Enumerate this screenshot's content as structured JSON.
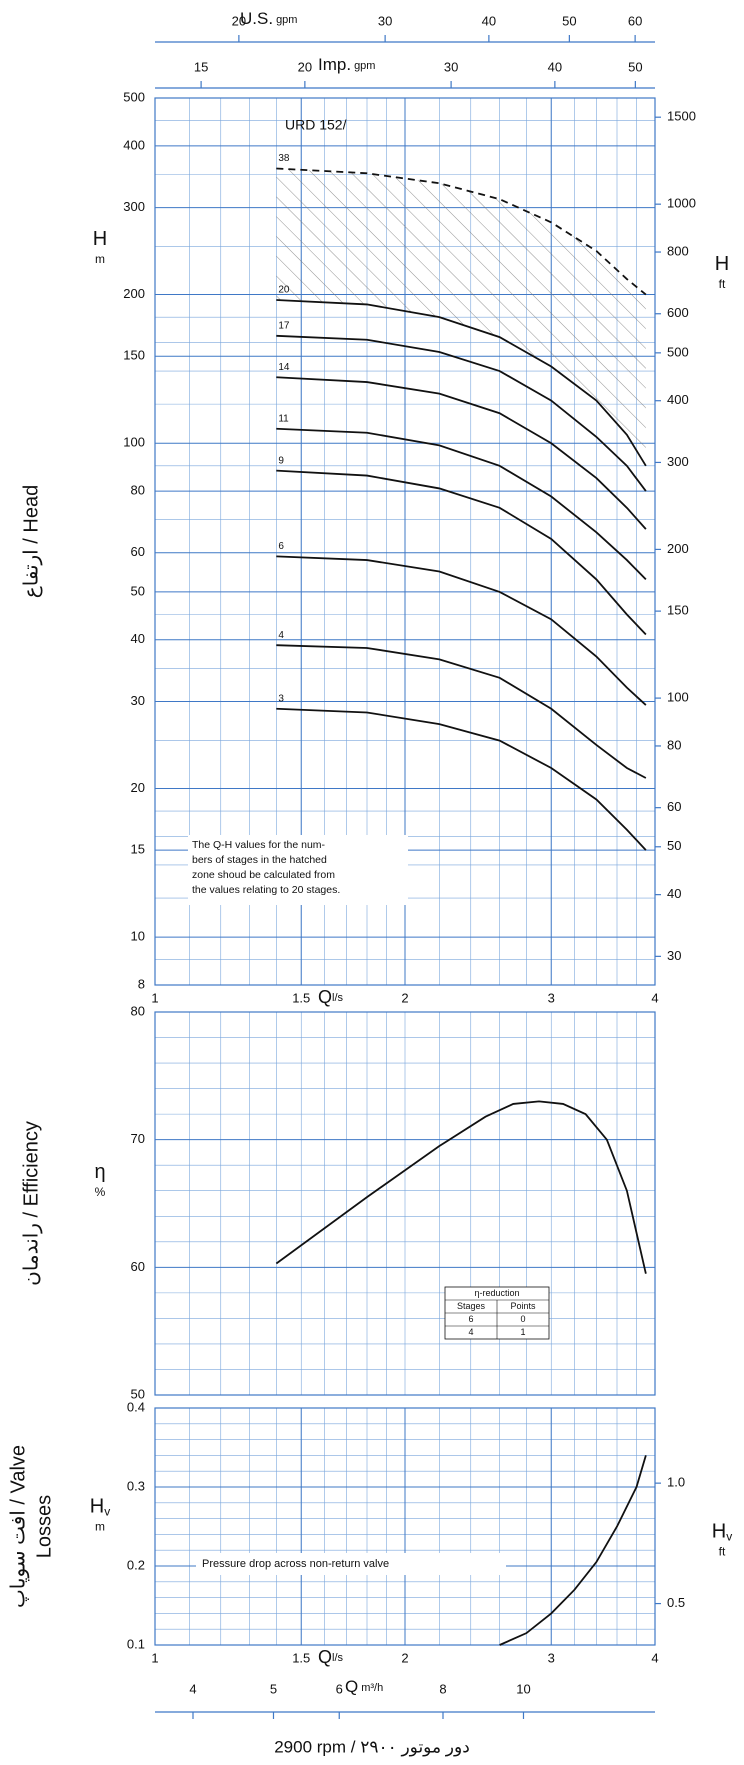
{
  "chart_data": [
    {
      "type": "line",
      "title": "URD 152/",
      "side_title": [
        "ارتفاع / Head"
      ],
      "y_symbol": {
        "symbol": "H",
        "unit": "m"
      },
      "y2_symbol": {
        "symbol": "H",
        "unit": "ft"
      },
      "xlabel": "Q",
      "xunit": "l/s",
      "xscale": "log",
      "yscale": "log",
      "xlim": [
        1,
        4
      ],
      "xticks": [
        1,
        1.5,
        2,
        3,
        4
      ],
      "xgrid": [
        1.1,
        1.2,
        1.3,
        1.4,
        1.5,
        1.6,
        1.7,
        1.8,
        1.9,
        2,
        2.2,
        2.4,
        2.6,
        2.8,
        3,
        3.2,
        3.4,
        3.6,
        3.8
      ],
      "ylim": [
        8,
        500
      ],
      "yticks": [
        8,
        10,
        15,
        20,
        30,
        40,
        50,
        60,
        80,
        100,
        150,
        200,
        300,
        400,
        500
      ],
      "ygrid": [
        9,
        12,
        14,
        16,
        18,
        25,
        35,
        45,
        70,
        90,
        120,
        140,
        160,
        180,
        250,
        350,
        450
      ],
      "y2lim": [
        26.25,
        1640.4
      ],
      "y2ticks": [
        30,
        40,
        50,
        60,
        80,
        100,
        150,
        200,
        300,
        400,
        500,
        600,
        800,
        1000,
        1500
      ],
      "top_axes": [
        {
          "label": "U.S.",
          "unit": "gpm",
          "xlim": [
            15.85,
            63.4
          ],
          "xticks": [
            20,
            30,
            40,
            50,
            60
          ]
        },
        {
          "label": "Imp.",
          "unit": "gpm",
          "xlim": [
            13.2,
            52.8
          ],
          "xticks": [
            15,
            20,
            30,
            40,
            50
          ]
        }
      ],
      "note": [
        "The Q-H values for the num-",
        "bers of stages in the hatched",
        "zone shoud be calculated from",
        "the values relating to 20 stages."
      ],
      "x": [
        1.4,
        1.8,
        2.2,
        2.6,
        3.0,
        3.4,
        3.7,
        3.9
      ],
      "series": [
        {
          "name": "3",
          "color": "#111111",
          "values": [
            29,
            28.5,
            27,
            25,
            22,
            19,
            16.5,
            15
          ]
        },
        {
          "name": "4",
          "color": "#111111",
          "values": [
            39,
            38.5,
            36.5,
            33.5,
            29,
            24.5,
            22,
            21
          ]
        },
        {
          "name": "6",
          "color": "#111111",
          "values": [
            59,
            58,
            55,
            50,
            44,
            37,
            32,
            29.5
          ]
        },
        {
          "name": "9",
          "color": "#111111",
          "values": [
            88,
            86,
            81,
            74,
            64,
            53,
            45,
            41
          ]
        },
        {
          "name": "11",
          "color": "#111111",
          "values": [
            107,
            105,
            99,
            90,
            78,
            66,
            58,
            53
          ]
        },
        {
          "name": "14",
          "color": "#111111",
          "values": [
            136,
            133,
            126,
            115,
            100,
            85,
            74,
            67
          ]
        },
        {
          "name": "17",
          "color": "#111111",
          "values": [
            165,
            162,
            153,
            140,
            122,
            103,
            90,
            80
          ]
        },
        {
          "name": "20",
          "color": "#111111",
          "values": [
            195,
            191,
            180,
            164,
            143,
            122,
            104,
            90
          ]
        },
        {
          "name": "38",
          "color": "#111111",
          "dashed": true,
          "values": [
            360,
            352,
            336,
            312,
            280,
            245,
            215,
            200
          ]
        }
      ]
    },
    {
      "type": "line",
      "side_title": [
        "راندمان / Efficiency"
      ],
      "y_symbol": {
        "symbol": "η",
        "unit": "%"
      },
      "xscale": "log",
      "yscale": "linear",
      "xlim": [
        1,
        4
      ],
      "xgrid": [
        1.1,
        1.2,
        1.3,
        1.4,
        1.5,
        1.6,
        1.7,
        1.8,
        1.9,
        2,
        2.2,
        2.4,
        2.6,
        2.8,
        3,
        3.2,
        3.4,
        3.6,
        3.8
      ],
      "ylim": [
        50,
        80
      ],
      "yticks": [
        50,
        60,
        70,
        80
      ],
      "ygrid": [
        52,
        54,
        56,
        58,
        62,
        64,
        66,
        68,
        72,
        74,
        76,
        78
      ],
      "table": {
        "title": "η-reduction",
        "header": [
          "Stages",
          "Points"
        ],
        "rows": [
          [
            "6",
            "0"
          ],
          [
            "4",
            "1"
          ]
        ]
      },
      "x": [
        1.4,
        1.8,
        2.2,
        2.5,
        2.7,
        2.9,
        3.1,
        3.3,
        3.5,
        3.7,
        3.9
      ],
      "series": [
        {
          "color": "#111111",
          "values": [
            60.3,
            65.5,
            69.5,
            71.8,
            72.8,
            73,
            72.8,
            72,
            70,
            66,
            59.5
          ]
        }
      ]
    },
    {
      "type": "line",
      "side_title": [
        "افت سوپاپ / Valve",
        "Losses"
      ],
      "y_symbol": {
        "symbol": "H",
        "sub": "v",
        "unit": "m"
      },
      "y2_symbol": {
        "symbol": "H",
        "sub": "v",
        "unit": "ft"
      },
      "xlabel": "Q",
      "xunit": "l/s",
      "xscale": "log",
      "yscale": "linear",
      "xlim": [
        1,
        4
      ],
      "xticks": [
        1,
        1.5,
        2,
        3,
        4
      ],
      "xgrid": [
        1.1,
        1.2,
        1.3,
        1.4,
        1.5,
        1.6,
        1.7,
        1.8,
        1.9,
        2,
        2.2,
        2.4,
        2.6,
        2.8,
        3,
        3.2,
        3.4,
        3.6,
        3.8
      ],
      "ylim": [
        0.1,
        0.4
      ],
      "yticks": [
        0.1,
        0.2,
        0.3,
        0.4
      ],
      "ygrid": [
        0.12,
        0.14,
        0.16,
        0.18,
        0.22,
        0.24,
        0.26,
        0.28,
        0.32,
        0.34,
        0.36,
        0.38
      ],
      "y2lim": [
        0.328,
        1.312
      ],
      "y2ticks": [
        0.5,
        {
          "value": 1,
          "label": "1.0"
        }
      ],
      "annotation": "Pressure drop across non-return valve",
      "bottom_axis": {
        "label": "Q",
        "unit": "m³/h",
        "xlim": [
          3.6,
          14.4
        ],
        "xticks": [
          4,
          5,
          6,
          8,
          10
        ]
      },
      "x": [
        2.6,
        2.8,
        3.0,
        3.2,
        3.4,
        3.6,
        3.8,
        3.9
      ],
      "series": [
        {
          "color": "#111111",
          "values": [
            0.1,
            0.115,
            0.14,
            0.17,
            0.205,
            0.25,
            0.3,
            0.34
          ]
        }
      ]
    }
  ],
  "footer": "2900 rpm / ۲۹۰۰ دور موتور"
}
